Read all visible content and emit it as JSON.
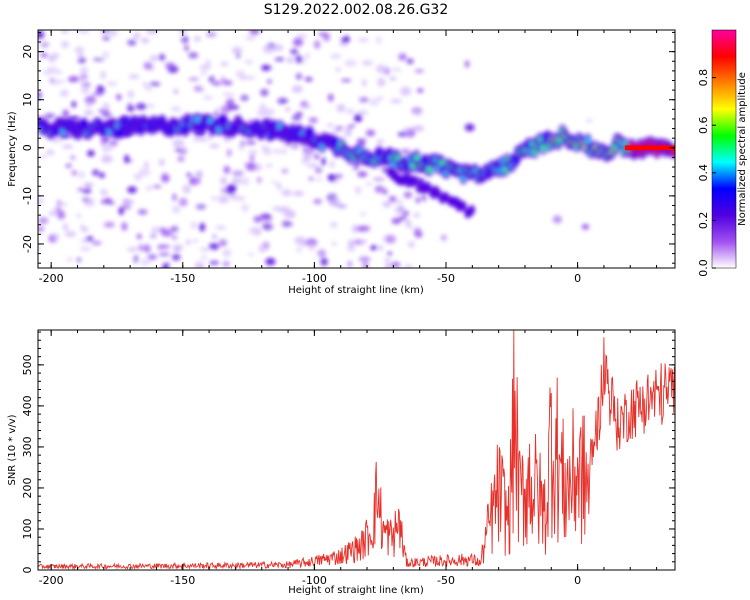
{
  "chart_data": [
    {
      "type": "heatmap",
      "title": "S129.2022.002.08.26.G32",
      "xlabel": "Height of straight line (km)",
      "ylabel": "Frequency (Hz)",
      "xlim": [
        -205,
        37
      ],
      "ylim": [
        -25,
        24.5
      ],
      "xticks": [
        -200,
        -150,
        -100,
        -50,
        0
      ],
      "yticks": [
        -20,
        -10,
        0,
        10,
        20
      ],
      "colorbar": {
        "label": "Normalized spectral amplitude",
        "range": [
          0,
          1
        ],
        "ticks": [
          0.0,
          0.2,
          0.4,
          0.6,
          0.8
        ],
        "colormap": [
          "#ffffff",
          "#a050f0",
          "#5000e0",
          "#0000ff",
          "#00ffff",
          "#00ff00",
          "#ffff00",
          "#ff8000",
          "#ff0000",
          "#ff00a0"
        ]
      },
      "ridge": {
        "description_points_x": [
          -205,
          -180,
          -160,
          -140,
          -120,
          -100,
          -85,
          -70,
          -55,
          -45,
          -38,
          -30,
          -25,
          -18,
          -10,
          -5,
          0,
          5,
          10,
          15,
          20,
          37
        ],
        "description_points_y": [
          4,
          4,
          4.5,
          5,
          4,
          2,
          -1,
          -2.5,
          -3.5,
          -5,
          -6,
          -4,
          -3,
          0,
          1.5,
          2.5,
          1.5,
          0,
          -1,
          0.5,
          0,
          0
        ]
      }
    },
    {
      "type": "line",
      "title": "",
      "xlabel": "Height of straight line (km)",
      "ylabel": "SNR (10 * v/v)",
      "xlim": [
        -205,
        37
      ],
      "ylim": [
        0,
        585
      ],
      "xticks": [
        -200,
        -150,
        -100,
        -50,
        0
      ],
      "yticks": [
        0,
        100,
        200,
        300,
        400,
        500
      ],
      "color": "#e8302a",
      "series": [
        {
          "name": "SNR",
          "x": [
            -205,
            -150,
            -110,
            -100,
            -90,
            -82,
            -78,
            -76,
            -74,
            -70,
            -68,
            -65,
            -55,
            -40,
            -37,
            -35,
            -30,
            -26,
            -24,
            -22,
            -18,
            -12,
            -10,
            -5,
            0,
            5,
            8,
            10,
            15,
            20,
            30,
            37
          ],
          "y": [
            10,
            12,
            15,
            25,
            40,
            70,
            120,
            225,
            110,
            90,
            140,
            20,
            25,
            30,
            20,
            110,
            280,
            180,
            580,
            250,
            330,
            200,
            510,
            290,
            350,
            300,
            400,
            540,
            380,
            420,
            460,
            475
          ]
        }
      ]
    }
  ]
}
